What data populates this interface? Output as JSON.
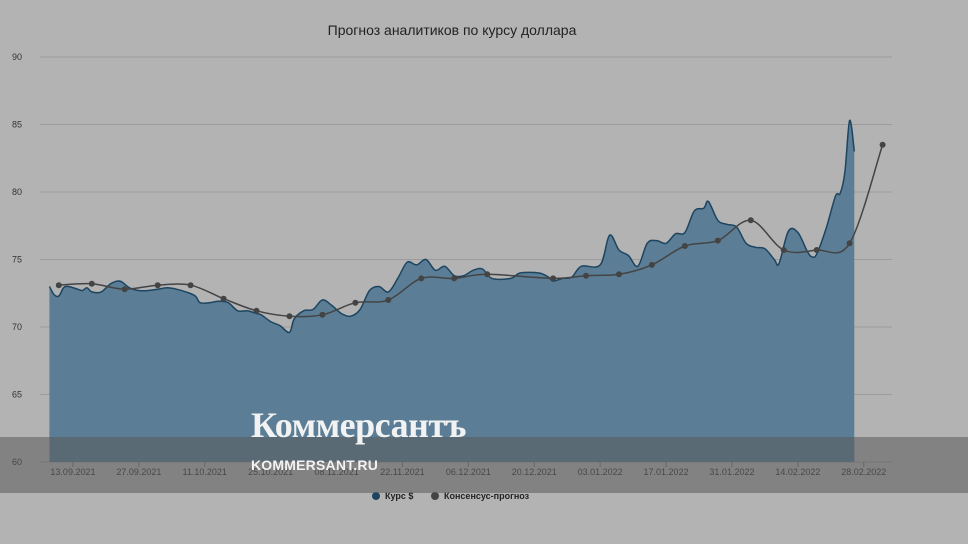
{
  "chart_data": {
    "type": "line",
    "title": "Прогноз аналитиков по курсу доллара",
    "xlabel": "",
    "ylabel": "",
    "ylim": [
      60,
      90
    ],
    "yticks": [
      60,
      65,
      70,
      75,
      80,
      85,
      90
    ],
    "x_tick_labels": [
      "13.09.2021",
      "27.09.2021",
      "11.10.2021",
      "25.10.2021",
      "08.11.2021",
      "22.11.2021",
      "06.12.2021",
      "20.12.2021",
      "03.01.2022",
      "17.01.2022",
      "31.01.2022",
      "14.02.2022",
      "28.02.2022"
    ],
    "grid": true,
    "legend_position": "bottom",
    "series": [
      {
        "name": "Курс $",
        "style": "area",
        "color": "#5b7e96",
        "line_color": "#1d4560",
        "points": [
          [
            "2021-09-08",
            73.0
          ],
          [
            "2021-09-09",
            72.4
          ],
          [
            "2021-09-10",
            72.3
          ],
          [
            "2021-09-11",
            72.9
          ],
          [
            "2021-09-12",
            73.0
          ],
          [
            "2021-09-14",
            72.8
          ],
          [
            "2021-09-15",
            72.7
          ],
          [
            "2021-09-16",
            72.9
          ],
          [
            "2021-09-17",
            72.6
          ],
          [
            "2021-09-19",
            72.6
          ],
          [
            "2021-09-21",
            73.2
          ],
          [
            "2021-09-23",
            73.4
          ],
          [
            "2021-09-25",
            72.9
          ],
          [
            "2021-09-27",
            72.7
          ],
          [
            "2021-09-29",
            72.7
          ],
          [
            "2021-10-01",
            72.8
          ],
          [
            "2021-10-03",
            72.9
          ],
          [
            "2021-10-05",
            72.8
          ],
          [
            "2021-10-07",
            72.6
          ],
          [
            "2021-10-09",
            72.3
          ],
          [
            "2021-10-10",
            71.8
          ],
          [
            "2021-10-12",
            71.8
          ],
          [
            "2021-10-14",
            71.9
          ],
          [
            "2021-10-16",
            71.8
          ],
          [
            "2021-10-18",
            71.2
          ],
          [
            "2021-10-20",
            71.2
          ],
          [
            "2021-10-22",
            71.0
          ],
          [
            "2021-10-23",
            70.9
          ],
          [
            "2021-10-25",
            70.4
          ],
          [
            "2021-10-27",
            70.1
          ],
          [
            "2021-10-29",
            69.6
          ],
          [
            "2021-10-30",
            70.6
          ],
          [
            "2021-11-01",
            71.2
          ],
          [
            "2021-11-03",
            71.3
          ],
          [
            "2021-11-05",
            72.0
          ],
          [
            "2021-11-07",
            71.6
          ],
          [
            "2021-11-09",
            71.0
          ],
          [
            "2021-11-11",
            70.8
          ],
          [
            "2021-11-13",
            71.3
          ],
          [
            "2021-11-15",
            72.7
          ],
          [
            "2021-11-17",
            73.0
          ],
          [
            "2021-11-19",
            72.6
          ],
          [
            "2021-11-21",
            73.6
          ],
          [
            "2021-11-23",
            74.8
          ],
          [
            "2021-11-25",
            74.6
          ],
          [
            "2021-11-27",
            75.0
          ],
          [
            "2021-11-29",
            74.2
          ],
          [
            "2021-12-01",
            74.5
          ],
          [
            "2021-12-03",
            73.8
          ],
          [
            "2021-12-05",
            73.8
          ],
          [
            "2021-12-07",
            74.2
          ],
          [
            "2021-12-09",
            74.3
          ],
          [
            "2021-12-11",
            73.6
          ],
          [
            "2021-12-15",
            73.6
          ],
          [
            "2021-12-17",
            74.0
          ],
          [
            "2021-12-21",
            74.0
          ],
          [
            "2021-12-23",
            73.7
          ],
          [
            "2021-12-24",
            73.4
          ],
          [
            "2021-12-26",
            73.6
          ],
          [
            "2021-12-28",
            73.7
          ],
          [
            "2021-12-30",
            74.5
          ],
          [
            "2022-01-03",
            74.6
          ],
          [
            "2022-01-05",
            76.8
          ],
          [
            "2022-01-07",
            75.7
          ],
          [
            "2022-01-09",
            75.3
          ],
          [
            "2022-01-11",
            74.5
          ],
          [
            "2022-01-13",
            76.2
          ],
          [
            "2022-01-15",
            76.4
          ],
          [
            "2022-01-17",
            76.2
          ],
          [
            "2022-01-19",
            76.9
          ],
          [
            "2022-01-21",
            77.0
          ],
          [
            "2022-01-23",
            78.6
          ],
          [
            "2022-01-25",
            78.8
          ],
          [
            "2022-01-26",
            79.3
          ],
          [
            "2022-01-28",
            77.9
          ],
          [
            "2022-01-30",
            77.6
          ],
          [
            "2022-02-01",
            77.4
          ],
          [
            "2022-02-03",
            76.2
          ],
          [
            "2022-02-05",
            75.9
          ],
          [
            "2022-02-07",
            75.8
          ],
          [
            "2022-02-09",
            75.0
          ],
          [
            "2022-02-10",
            74.7
          ],
          [
            "2022-02-12",
            77.1
          ],
          [
            "2022-02-14",
            77.0
          ],
          [
            "2022-02-16",
            75.6
          ],
          [
            "2022-02-17",
            75.2
          ],
          [
            "2022-02-18",
            75.4
          ],
          [
            "2022-02-20",
            77.3
          ],
          [
            "2022-02-22",
            79.7
          ],
          [
            "2022-02-23",
            79.9
          ],
          [
            "2022-02-24",
            81.5
          ],
          [
            "2022-02-25",
            85.3
          ],
          [
            "2022-02-26",
            83.0
          ]
        ]
      },
      {
        "name": "Консенсус-прогноз",
        "style": "line",
        "color": "#444444",
        "points": [
          [
            "2021-09-10",
            73.1
          ],
          [
            "2021-09-17",
            73.2
          ],
          [
            "2021-09-24",
            72.8
          ],
          [
            "2021-10-01",
            73.1
          ],
          [
            "2021-10-08",
            73.1
          ],
          [
            "2021-10-15",
            72.1
          ],
          [
            "2021-10-22",
            71.2
          ],
          [
            "2021-10-29",
            70.8
          ],
          [
            "2021-11-05",
            70.9
          ],
          [
            "2021-11-12",
            71.8
          ],
          [
            "2021-11-19",
            72.0
          ],
          [
            "2021-11-26",
            73.6
          ],
          [
            "2021-12-03",
            73.6
          ],
          [
            "2021-12-10",
            73.9
          ],
          [
            "2021-12-24",
            73.6
          ],
          [
            "2021-12-31",
            73.8
          ],
          [
            "2022-01-07",
            73.9
          ],
          [
            "2022-01-14",
            74.6
          ],
          [
            "2022-01-21",
            76.0
          ],
          [
            "2022-01-28",
            76.4
          ],
          [
            "2022-02-04",
            77.9
          ],
          [
            "2022-02-11",
            75.7
          ],
          [
            "2022-02-18",
            75.7
          ],
          [
            "2022-02-25",
            76.2
          ],
          [
            "2022-03-04",
            83.5
          ]
        ]
      }
    ]
  },
  "watermark": {
    "logo": "Коммерсантъ",
    "site": "KOMMERSANT.RU"
  }
}
